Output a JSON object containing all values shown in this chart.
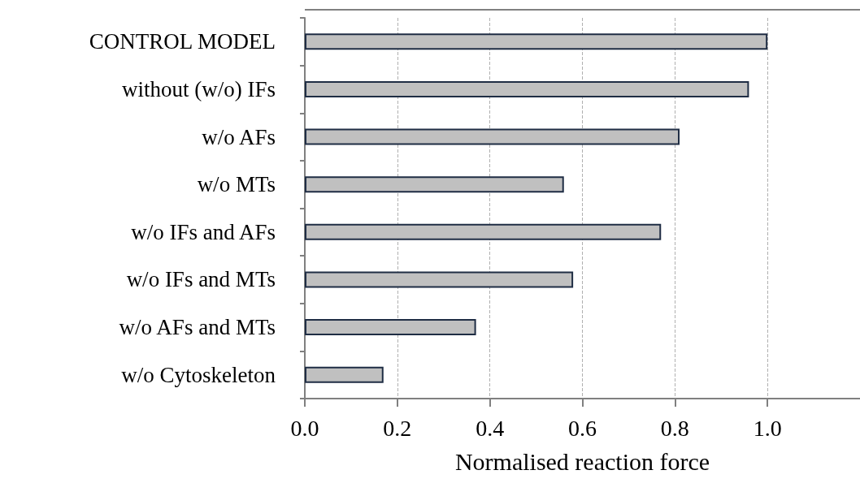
{
  "chart_data": {
    "type": "bar",
    "orientation": "horizontal",
    "xlabel": "Normalised reaction force",
    "categories": [
      "CONTROL MODEL",
      "without (w/o) IFs",
      "w/o AFs",
      "w/o MTs",
      "w/o IFs and AFs",
      "w/o IFs and MTs",
      "w/o AFs and MTs",
      "w/o Cytoskeleton"
    ],
    "values": [
      1.0,
      0.96,
      0.81,
      0.56,
      0.77,
      0.58,
      0.37,
      0.17
    ],
    "color": "#c0c0c0",
    "xlim": [
      0,
      1.2
    ],
    "xticks": [
      {
        "value": 0,
        "label": "0.0"
      },
      0.2,
      0.4,
      0.6,
      0.8,
      {
        "value": 1,
        "label": "1.0"
      }
    ],
    "grid": "x"
  }
}
